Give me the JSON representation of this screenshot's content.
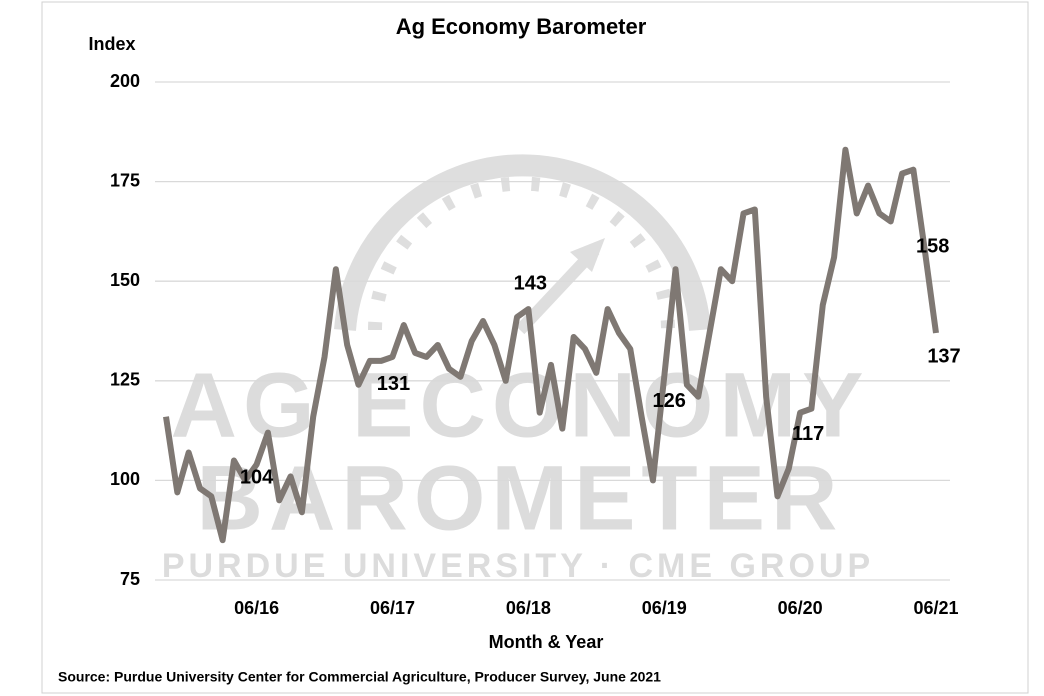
{
  "chart_data": {
    "type": "line",
    "title": "Ag Economy Barometer",
    "y_label": "Index",
    "x_label": "Month & Year",
    "source": "Source: Purdue University Center for Commercial Agriculture, Producer Survey, June 2021",
    "watermark": {
      "line1": "AG ECONOMY",
      "line2": "BAROMETER",
      "line3": "PURDUE UNIVERSITY · CME GROUP"
    },
    "categories": [
      null,
      null,
      null,
      null,
      null,
      null,
      null,
      null,
      "06/16",
      null,
      null,
      null,
      null,
      null,
      null,
      null,
      null,
      null,
      null,
      null,
      "06/17",
      null,
      null,
      null,
      null,
      null,
      null,
      null,
      null,
      null,
      null,
      null,
      "06/18",
      null,
      null,
      null,
      null,
      null,
      null,
      null,
      null,
      null,
      null,
      null,
      "06/19",
      null,
      null,
      null,
      null,
      null,
      null,
      null,
      null,
      null,
      null,
      null,
      "06/20",
      null,
      null,
      null,
      null,
      null,
      null,
      null,
      null,
      null,
      null,
      null,
      "06/21"
    ],
    "series": [
      {
        "name": "Ag Economy Barometer",
        "color": "#7f7873",
        "values": [
          116,
          97,
          107,
          98,
          96,
          85,
          105,
          100,
          104,
          112,
          95,
          101,
          92,
          116,
          131,
          153,
          134,
          124,
          130,
          130,
          131,
          139,
          132,
          131,
          134,
          128,
          126,
          135,
          140,
          134,
          125,
          141,
          143,
          117,
          129,
          113,
          136,
          133,
          127,
          143,
          137,
          133,
          116,
          100,
          126,
          153,
          124,
          121,
          137,
          153,
          150,
          167,
          168,
          121,
          96,
          103,
          117,
          118,
          144,
          156,
          183,
          167,
          174,
          167,
          165,
          177,
          178,
          158,
          137
        ],
        "value_labels": [
          null,
          null,
          null,
          null,
          null,
          null,
          null,
          null,
          "104",
          null,
          null,
          null,
          null,
          null,
          null,
          null,
          null,
          null,
          null,
          null,
          "131",
          null,
          null,
          null,
          null,
          null,
          null,
          null,
          null,
          null,
          null,
          null,
          "143",
          null,
          null,
          null,
          null,
          null,
          null,
          null,
          null,
          null,
          null,
          null,
          "126",
          null,
          null,
          null,
          null,
          null,
          null,
          null,
          null,
          null,
          null,
          null,
          "117",
          null,
          null,
          null,
          null,
          null,
          null,
          null,
          null,
          null,
          null,
          "158",
          "137"
        ]
      }
    ],
    "ylim": [
      75,
      200
    ],
    "yticks": [
      75,
      100,
      125,
      150,
      175,
      200
    ],
    "grid": true
  }
}
